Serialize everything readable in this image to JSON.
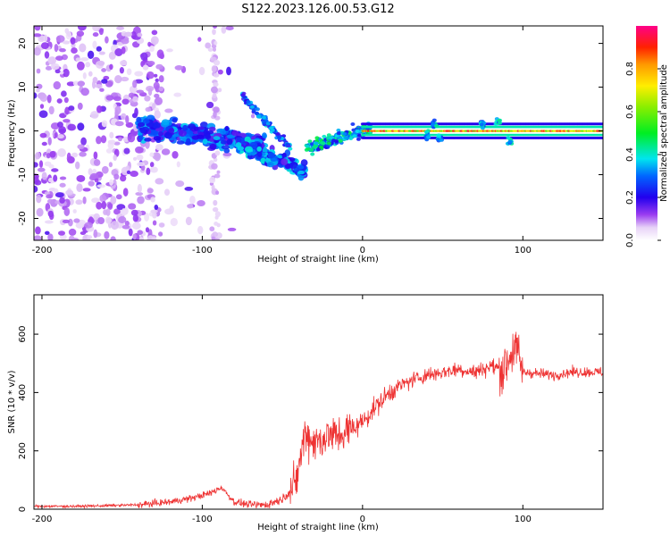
{
  "figure_title": "S122.2023.126.00.53.G12",
  "chart_data": [
    {
      "type": "heatmap",
      "xlabel": "Height of straight line (km)",
      "ylabel": "Frequency (Hz)",
      "xlim": [
        -205,
        150
      ],
      "ylim": [
        -25,
        24
      ],
      "xticks": [
        -200,
        -100,
        0,
        100
      ],
      "yticks": [
        -20,
        -10,
        0,
        10,
        20
      ],
      "colorbar": {
        "label": "Normalized spectral amplitude",
        "range": [
          0,
          1
        ],
        "ticks": [
          "0.0",
          "0.2",
          "0.4",
          "0.6",
          "0.8"
        ],
        "tick_values": [
          0,
          0.2,
          0.4,
          0.6,
          0.8
        ],
        "colormap": "rainbow"
      },
      "features": [
        {
          "x_range": [
            -205,
            -130
          ],
          "y_range": [
            -25,
            24
          ],
          "amplitude": 0.05,
          "description": "diffuse noise"
        },
        {
          "x_range": [
            -140,
            -60
          ],
          "y_range": [
            -5,
            6
          ],
          "amplitude": 0.25
        },
        {
          "x_range": [
            -75,
            -35
          ],
          "y_range": [
            -12,
            8
          ],
          "amplitude": 0.3
        },
        {
          "x_range": [
            -35,
            5
          ],
          "y_range": [
            -8,
            3
          ],
          "amplitude": 0.35
        },
        {
          "x_range": [
            5,
            150
          ],
          "y_range": [
            -1,
            1
          ],
          "amplitude": 0.95
        }
      ]
    },
    {
      "type": "line",
      "xlabel": "Height of straight line (km)",
      "ylabel": "SNR (10 * v/v)",
      "xlim": [
        -205,
        150
      ],
      "ylim": [
        0,
        735
      ],
      "xticks": [
        -200,
        -100,
        0,
        100
      ],
      "yticks": [
        0,
        200,
        400,
        600
      ],
      "color": "#ee3333",
      "series": [
        {
          "x": [
            -205,
            -180,
            -160,
            -140,
            -120,
            -105,
            -95,
            -88,
            -80,
            -70,
            -60,
            -50,
            -42,
            -36,
            -30,
            -22,
            -15,
            -8,
            0,
            8,
            15,
            22,
            30,
            40,
            50,
            60,
            70,
            80,
            88,
            95,
            100,
            110,
            120,
            130,
            140,
            150
          ],
          "y": [
            10,
            10,
            12,
            15,
            25,
            40,
            55,
            75,
            25,
            15,
            15,
            35,
            80,
            260,
            230,
            250,
            255,
            270,
            300,
            350,
            390,
            420,
            440,
            460,
            470,
            480,
            470,
            490,
            480,
            560,
            470,
            465,
            460,
            470,
            470,
            470
          ]
        }
      ]
    }
  ]
}
